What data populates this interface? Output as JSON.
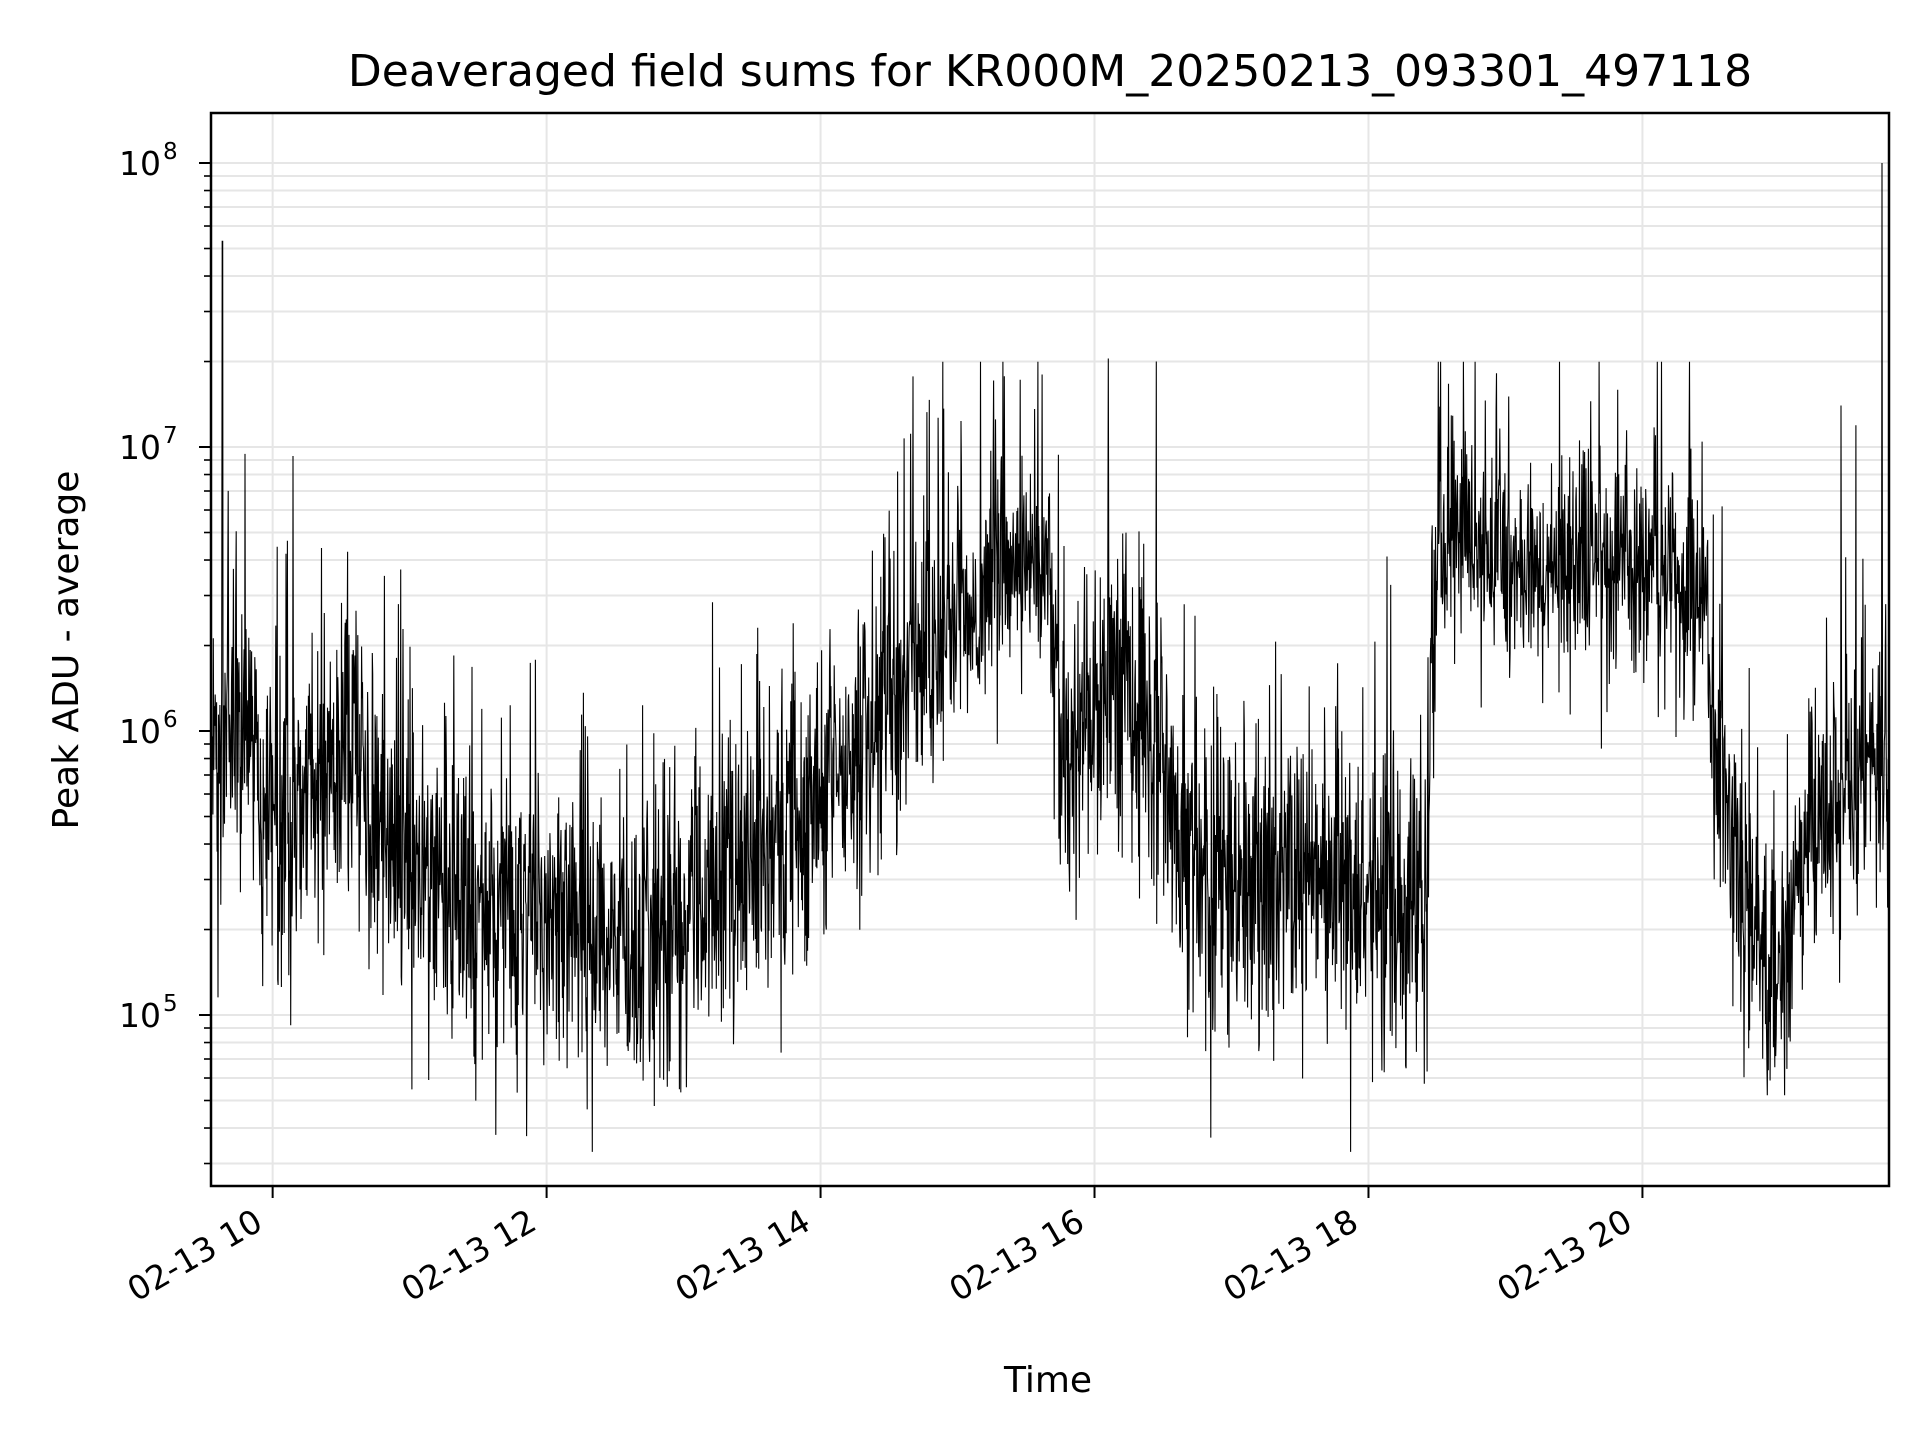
{
  "chart_data": {
    "type": "line",
    "title": "Deaveraged field sums for KR000M_20250213_093301_497118",
    "xlabel": "Time",
    "ylabel": "Peak ADU - average",
    "y_scale": "log",
    "grid": true,
    "xlim": [
      "2025-02-13 09:33",
      "2025-02-13 21:48"
    ],
    "ylim": [
      25000,
      150000000
    ],
    "x_ticks": [
      {
        "t": "2025-02-13 10:00",
        "label": "02-13 10"
      },
      {
        "t": "2025-02-13 12:00",
        "label": "02-13 12"
      },
      {
        "t": "2025-02-13 14:00",
        "label": "02-13 14"
      },
      {
        "t": "2025-02-13 16:00",
        "label": "02-13 16"
      },
      {
        "t": "2025-02-13 18:00",
        "label": "02-13 18"
      },
      {
        "t": "2025-02-13 20:00",
        "label": "02-13 20"
      }
    ],
    "y_ticks": [
      {
        "value": 100000,
        "base": "10",
        "exp": "5"
      },
      {
        "value": 1000000,
        "base": "10",
        "exp": "6"
      },
      {
        "value": 10000000,
        "base": "10",
        "exp": "7"
      },
      {
        "value": 100000000,
        "base": "10",
        "exp": "8"
      }
    ],
    "series_color": "#000000",
    "series": [
      {
        "x": [
          "2025-02-13 09:33",
          "2025-02-13 09:40",
          "2025-02-13 09:48",
          "2025-02-13 09:55",
          "2025-02-13 10:05",
          "2025-02-13 10:15",
          "2025-02-13 10:25",
          "2025-02-13 10:35",
          "2025-02-13 10:45",
          "2025-02-13 11:00",
          "2025-02-13 11:15",
          "2025-02-13 11:30",
          "2025-02-13 11:45",
          "2025-02-13 12:00",
          "2025-02-13 12:15",
          "2025-02-13 12:30",
          "2025-02-13 12:45",
          "2025-02-13 13:00",
          "2025-02-13 13:15",
          "2025-02-13 13:30",
          "2025-02-13 13:45",
          "2025-02-13 14:00",
          "2025-02-13 14:15",
          "2025-02-13 14:30",
          "2025-02-13 14:45",
          "2025-02-13 15:00",
          "2025-02-13 15:15",
          "2025-02-13 15:30",
          "2025-02-13 15:40",
          "2025-02-13 15:45",
          "2025-02-13 16:00",
          "2025-02-13 16:15",
          "2025-02-13 16:25",
          "2025-02-13 16:35",
          "2025-02-13 16:45",
          "2025-02-13 17:00",
          "2025-02-13 17:15",
          "2025-02-13 17:30",
          "2025-02-13 17:45",
          "2025-02-13 18:00",
          "2025-02-13 18:15",
          "2025-02-13 18:25",
          "2025-02-13 18:30",
          "2025-02-13 18:45",
          "2025-02-13 19:00",
          "2025-02-13 19:15",
          "2025-02-13 19:30",
          "2025-02-13 19:45",
          "2025-02-13 20:00",
          "2025-02-13 20:15",
          "2025-02-13 20:25",
          "2025-02-13 20:35",
          "2025-02-13 20:45",
          "2025-02-13 21:00",
          "2025-02-13 21:15",
          "2025-02-13 21:30",
          "2025-02-13 21:40",
          "2025-02-13 21:48"
        ],
        "y": [
          800000,
          900000,
          1100000,
          500000,
          500000,
          600000,
          700000,
          800000,
          500000,
          300000,
          280000,
          250000,
          230000,
          220000,
          200000,
          180000,
          200000,
          230000,
          280000,
          350000,
          400000,
          500000,
          800000,
          1200000,
          1800000,
          2500000,
          3500000,
          4000000,
          3000000,
          800000,
          1200000,
          1500000,
          1000000,
          450000,
          350000,
          330000,
          320000,
          300000,
          300000,
          280000,
          250000,
          250000,
          4500000,
          5000000,
          4500000,
          3500000,
          4000000,
          4000000,
          4000000,
          3500000,
          2500000,
          800000,
          200000,
          160000,
          450000,
          650000,
          750000,
          800000
        ]
      }
    ],
    "annotations": [
      {
        "t": "2025-02-13 09:38",
        "value": 53000000
      },
      {
        "t": "2025-02-13 10:09",
        "value": 9300000
      },
      {
        "t": "2025-02-13 15:37",
        "value": 18000000
      },
      {
        "t": "2025-02-13 16:06",
        "value": 20500000
      },
      {
        "t": "2025-02-13 16:27",
        "value": 20000000
      },
      {
        "t": "2025-02-13 16:51",
        "value": 37000
      },
      {
        "t": "2025-02-13 21:27",
        "value": 14000000
      },
      {
        "t": "2025-02-13 21:45",
        "value": 100000000
      }
    ]
  }
}
